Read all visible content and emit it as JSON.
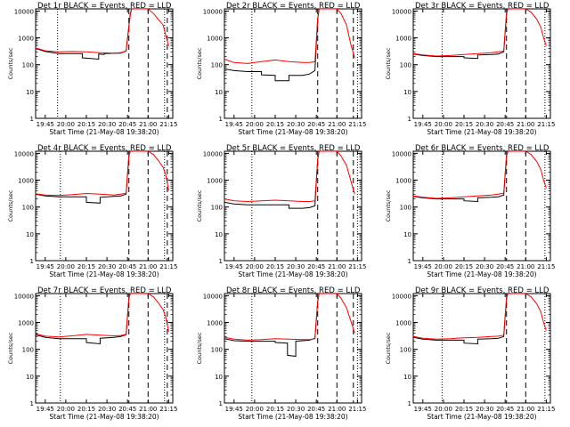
{
  "colors": {
    "events": "#000000",
    "lld": "#ff0000",
    "axis": "#000000",
    "background": "#ffffff"
  },
  "ylabel": "Counts/sec",
  "xlabel": "Start Time (21-May-08 19:38:20)",
  "xticks": [
    "19:45",
    "20:00",
    "20:15",
    "20:30",
    "20:45",
    "21:00",
    "21:15"
  ],
  "yticks": [
    "1",
    "10",
    "100",
    "1000",
    "10000"
  ],
  "chart_data": [
    {
      "type": "line",
      "title": "Det 1r BLACK = Events, RED = LLD",
      "y_scale": "log",
      "ylim": [
        1,
        12000
      ],
      "xlim": [
        "19:38",
        "21:18"
      ],
      "grid": false,
      "dotted_lines_x": [
        "19:54",
        "21:12"
      ],
      "dashed_lines_x": [
        "20:46",
        "21:00",
        "21:14"
      ],
      "series": [
        {
          "name": "Events",
          "color": "#000000",
          "x": [
            "19:38",
            "19:45",
            "19:55",
            "20:05",
            "20:12",
            "20:12",
            "20:24",
            "20:24",
            "20:28",
            "20:28",
            "20:40",
            "20:44",
            "20:47",
            "20:48"
          ],
          "y": [
            400,
            310,
            260,
            260,
            260,
            180,
            160,
            250,
            240,
            260,
            270,
            330,
            8000,
            12000
          ]
        },
        {
          "name": "LLD",
          "color": "#ff0000",
          "x": [
            "19:38",
            "19:45",
            "19:55",
            "20:05",
            "20:15",
            "20:25",
            "20:35",
            "20:40",
            "20:44",
            "20:47",
            "20:48",
            "21:00",
            "21:04",
            "21:08",
            "21:11",
            "21:13",
            "21:15"
          ],
          "y": [
            420,
            330,
            300,
            310,
            300,
            280,
            270,
            280,
            320,
            7000,
            12000,
            12000,
            8000,
            4500,
            3000,
            1200,
            500
          ]
        }
      ]
    },
    {
      "type": "line",
      "title": "Det 2r BLACK = Events, RED = LLD",
      "y_scale": "log",
      "ylim": [
        1,
        12000
      ],
      "xlim": [
        "19:38",
        "21:18"
      ],
      "grid": false,
      "dotted_lines_x": [
        "19:58",
        "21:15"
      ],
      "dashed_lines_x": [
        "20:46",
        "21:00",
        "21:12"
      ],
      "series": [
        {
          "name": "Events",
          "color": "#000000",
          "x": [
            "19:38",
            "19:45",
            "19:55",
            "20:05",
            "20:05",
            "20:15",
            "20:15",
            "20:25",
            "20:25",
            "20:35",
            "20:40",
            "20:44",
            "20:46",
            "20:47"
          ],
          "y": [
            70,
            60,
            55,
            55,
            42,
            40,
            25,
            25,
            40,
            40,
            45,
            60,
            5000,
            12000
          ]
        },
        {
          "name": "LLD",
          "color": "#ff0000",
          "x": [
            "19:38",
            "19:45",
            "19:55",
            "20:05",
            "20:15",
            "20:25",
            "20:35",
            "20:40",
            "20:44",
            "20:46",
            "20:47",
            "21:00",
            "21:03",
            "21:07",
            "21:10",
            "21:13"
          ],
          "y": [
            160,
            120,
            110,
            130,
            150,
            130,
            120,
            120,
            130,
            5000,
            12000,
            12000,
            8000,
            3000,
            600,
            180
          ]
        }
      ]
    },
    {
      "type": "line",
      "title": "Det 3r BLACK = Events, RED = LLD",
      "y_scale": "log",
      "ylim": [
        1,
        12000
      ],
      "xlim": [
        "19:38",
        "21:18"
      ],
      "grid": false,
      "dotted_lines_x": [
        "19:59",
        "21:14"
      ],
      "dashed_lines_x": [
        "20:46",
        "21:00"
      ],
      "series": [
        {
          "name": "Events",
          "color": "#000000",
          "x": [
            "19:38",
            "19:45",
            "19:55",
            "20:05",
            "20:15",
            "20:15",
            "20:25",
            "20:25",
            "20:35",
            "20:40",
            "20:44",
            "20:46",
            "20:47"
          ],
          "y": [
            250,
            220,
            200,
            200,
            200,
            180,
            170,
            230,
            240,
            250,
            300,
            8000,
            12000
          ]
        },
        {
          "name": "LLD",
          "color": "#ff0000",
          "x": [
            "19:38",
            "19:45",
            "19:55",
            "20:05",
            "20:15",
            "20:25",
            "20:35",
            "20:40",
            "20:44",
            "20:46",
            "20:47",
            "21:00",
            "21:04",
            "21:08",
            "21:11",
            "21:13",
            "21:15"
          ],
          "y": [
            260,
            230,
            210,
            220,
            240,
            260,
            280,
            300,
            320,
            8000,
            12000,
            12000,
            9000,
            5000,
            2500,
            1000,
            500
          ]
        }
      ]
    },
    {
      "type": "line",
      "title": "Det 4r BLACK = Events, RED = LLD",
      "y_scale": "log",
      "ylim": [
        1,
        12000
      ],
      "xlim": [
        "19:38",
        "21:18"
      ],
      "grid": false,
      "dotted_lines_x": [
        "19:56",
        "21:12"
      ],
      "dashed_lines_x": [
        "20:46",
        "21:00",
        "21:14"
      ],
      "series": [
        {
          "name": "Events",
          "color": "#000000",
          "x": [
            "19:38",
            "19:45",
            "19:55",
            "20:05",
            "20:15",
            "20:15",
            "20:25",
            "20:25",
            "20:35",
            "20:40",
            "20:44",
            "20:46",
            "20:47"
          ],
          "y": [
            300,
            260,
            240,
            240,
            240,
            150,
            140,
            230,
            250,
            260,
            300,
            8000,
            12000
          ]
        },
        {
          "name": "LLD",
          "color": "#ff0000",
          "x": [
            "19:38",
            "19:45",
            "19:55",
            "20:05",
            "20:15",
            "20:25",
            "20:35",
            "20:40",
            "20:44",
            "20:46",
            "20:47",
            "21:00",
            "21:04",
            "21:08",
            "21:11",
            "21:13",
            "21:15"
          ],
          "y": [
            310,
            280,
            270,
            290,
            320,
            300,
            280,
            300,
            330,
            8000,
            12000,
            12000,
            9000,
            5000,
            3000,
            1500,
            400
          ]
        }
      ]
    },
    {
      "type": "line",
      "title": "Det 5r BLACK = Events, RED = LLD",
      "y_scale": "log",
      "ylim": [
        1,
        12000
      ],
      "xlim": [
        "19:38",
        "21:18"
      ],
      "grid": false,
      "dotted_lines_x": [
        "19:58",
        "21:15"
      ],
      "dashed_lines_x": [
        "20:46",
        "21:00",
        "21:12"
      ],
      "series": [
        {
          "name": "Events",
          "color": "#000000",
          "x": [
            "19:38",
            "19:45",
            "19:55",
            "20:05",
            "20:15",
            "20:25",
            "20:25",
            "20:35",
            "20:40",
            "20:44",
            "20:46",
            "20:47"
          ],
          "y": [
            150,
            130,
            120,
            120,
            120,
            120,
            90,
            90,
            95,
            110,
            6000,
            12000
          ]
        },
        {
          "name": "LLD",
          "color": "#ff0000",
          "x": [
            "19:38",
            "19:45",
            "19:55",
            "20:05",
            "20:15",
            "20:25",
            "20:35",
            "20:40",
            "20:44",
            "20:46",
            "20:47",
            "21:00",
            "21:03",
            "21:07",
            "21:10",
            "21:13"
          ],
          "y": [
            200,
            170,
            160,
            170,
            180,
            170,
            160,
            160,
            170,
            6000,
            12000,
            12000,
            8000,
            3500,
            1000,
            300
          ]
        }
      ]
    },
    {
      "type": "line",
      "title": "Det 6r BLACK = Events, RED = LLD",
      "y_scale": "log",
      "ylim": [
        1,
        12000
      ],
      "xlim": [
        "19:38",
        "21:18"
      ],
      "grid": false,
      "dotted_lines_x": [
        "19:59",
        "21:14"
      ],
      "dashed_lines_x": [
        "20:46",
        "21:00"
      ],
      "series": [
        {
          "name": "Events",
          "color": "#000000",
          "x": [
            "19:38",
            "19:45",
            "19:55",
            "20:05",
            "20:15",
            "20:15",
            "20:25",
            "20:25",
            "20:35",
            "20:40",
            "20:44",
            "20:46",
            "20:47"
          ],
          "y": [
            250,
            220,
            200,
            200,
            200,
            170,
            160,
            220,
            230,
            240,
            280,
            8000,
            12000
          ]
        },
        {
          "name": "LLD",
          "color": "#ff0000",
          "x": [
            "19:38",
            "19:45",
            "19:55",
            "20:05",
            "20:15",
            "20:25",
            "20:35",
            "20:40",
            "20:44",
            "20:46",
            "20:47",
            "21:00",
            "21:04",
            "21:08",
            "21:11",
            "21:13",
            "21:15"
          ],
          "y": [
            260,
            230,
            210,
            220,
            240,
            260,
            280,
            300,
            330,
            8000,
            12000,
            12000,
            9000,
            5000,
            2500,
            1000,
            500
          ]
        }
      ]
    },
    {
      "type": "line",
      "title": "Det 7r BLACK = Events, RED = LLD",
      "y_scale": "log",
      "ylim": [
        1,
        12000
      ],
      "xlim": [
        "19:38",
        "21:18"
      ],
      "grid": false,
      "dotted_lines_x": [
        "19:56",
        "21:12"
      ],
      "dashed_lines_x": [
        "20:46",
        "21:00",
        "21:14"
      ],
      "series": [
        {
          "name": "Events",
          "color": "#000000",
          "x": [
            "19:38",
            "19:45",
            "19:55",
            "20:05",
            "20:15",
            "20:15",
            "20:25",
            "20:25",
            "20:35",
            "20:40",
            "20:44",
            "20:46",
            "20:47"
          ],
          "y": [
            350,
            280,
            250,
            250,
            250,
            180,
            160,
            260,
            280,
            300,
            350,
            8000,
            12000
          ]
        },
        {
          "name": "LLD",
          "color": "#ff0000",
          "x": [
            "19:38",
            "19:45",
            "19:55",
            "20:05",
            "20:15",
            "20:25",
            "20:35",
            "20:40",
            "20:44",
            "20:46",
            "20:47",
            "21:00",
            "21:04",
            "21:08",
            "21:11",
            "21:13",
            "21:15"
          ],
          "y": [
            380,
            310,
            290,
            320,
            360,
            340,
            320,
            330,
            360,
            8000,
            12000,
            12000,
            9000,
            5000,
            3000,
            1500,
            450
          ]
        }
      ]
    },
    {
      "type": "line",
      "title": "Det 8r BLACK = Events, RED = LLD",
      "y_scale": "log",
      "ylim": [
        1,
        12000
      ],
      "xlim": [
        "19:38",
        "21:18"
      ],
      "grid": false,
      "dotted_lines_x": [
        "19:58",
        "21:15"
      ],
      "dashed_lines_x": [
        "20:46",
        "21:00",
        "21:12"
      ],
      "series": [
        {
          "name": "Events",
          "color": "#000000",
          "x": [
            "19:38",
            "19:45",
            "19:55",
            "20:05",
            "20:15",
            "20:15",
            "20:24",
            "20:24",
            "20:30",
            "20:30",
            "20:35",
            "20:40",
            "20:44",
            "20:46",
            "20:47"
          ],
          "y": [
            250,
            210,
            200,
            200,
            200,
            180,
            170,
            60,
            55,
            200,
            210,
            220,
            260,
            6000,
            12000
          ]
        },
        {
          "name": "LLD",
          "color": "#ff0000",
          "x": [
            "19:38",
            "19:45",
            "19:55",
            "20:05",
            "20:15",
            "20:25",
            "20:35",
            "20:40",
            "20:44",
            "20:46",
            "20:47",
            "21:00",
            "21:03",
            "21:07",
            "21:10",
            "21:13"
          ],
          "y": [
            280,
            240,
            220,
            230,
            250,
            240,
            230,
            230,
            250,
            6000,
            12000,
            12000,
            8000,
            3500,
            1200,
            400
          ]
        }
      ]
    },
    {
      "type": "line",
      "title": "Det 9r BLACK = Events, RED = LLD",
      "y_scale": "log",
      "ylim": [
        1,
        12000
      ],
      "xlim": [
        "19:38",
        "21:18"
      ],
      "grid": false,
      "dotted_lines_x": [
        "19:59",
        "21:14"
      ],
      "dashed_lines_x": [
        "20:46",
        "21:00"
      ],
      "series": [
        {
          "name": "Events",
          "color": "#000000",
          "x": [
            "19:38",
            "19:45",
            "19:55",
            "20:05",
            "20:15",
            "20:15",
            "20:25",
            "20:25",
            "20:35",
            "20:40",
            "20:44",
            "20:46",
            "20:47"
          ],
          "y": [
            280,
            240,
            220,
            220,
            220,
            170,
            160,
            240,
            250,
            260,
            300,
            8000,
            12000
          ]
        },
        {
          "name": "LLD",
          "color": "#ff0000",
          "x": [
            "19:38",
            "19:45",
            "19:55",
            "20:05",
            "20:15",
            "20:25",
            "20:35",
            "20:40",
            "20:44",
            "20:46",
            "20:47",
            "21:00",
            "21:04",
            "21:08",
            "21:11",
            "21:13",
            "21:15"
          ],
          "y": [
            300,
            260,
            240,
            250,
            270,
            280,
            300,
            310,
            340,
            8000,
            12000,
            12000,
            9000,
            5000,
            2500,
            1000,
            500
          ]
        }
      ]
    }
  ]
}
